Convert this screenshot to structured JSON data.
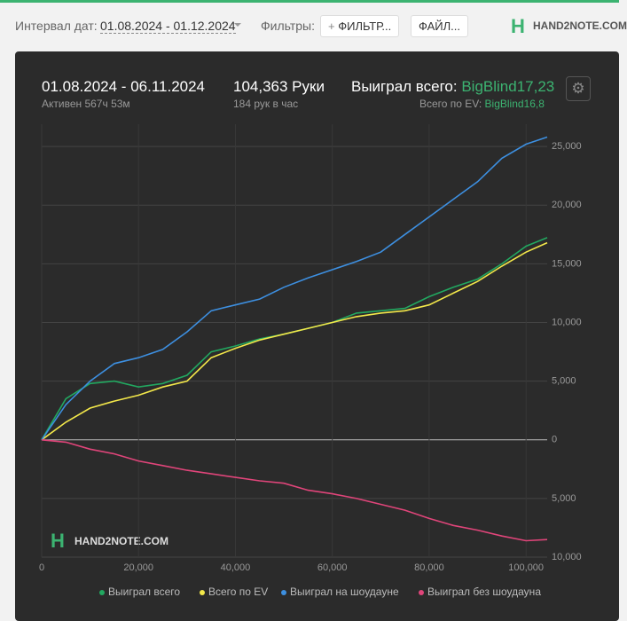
{
  "toolbar": {
    "date_label": "Интервал дат:",
    "date_range": "01.08.2024 - 01.12.2024",
    "filters_label": "Фильтры:",
    "filter_button": "ФИЛЬТР...",
    "file_button": "ФАЙЛ...",
    "logo": "HAND2NOTE.COM"
  },
  "summary": {
    "period": "01.08.2024 - 06.11.2024",
    "active": "Активен 567ч 53м",
    "hands": "104,363 Руки",
    "rate": "184 рук в час",
    "won_label": "Выиграл всего:",
    "won_value": "BigBlind17,23",
    "ev_label": "Всего по EV:",
    "ev_value": "BigBlind16,8"
  },
  "chart_data": {
    "type": "line",
    "watermark": "HAND2NOTE.COM",
    "x": [
      0,
      5000,
      10000,
      15000,
      20000,
      25000,
      30000,
      35000,
      40000,
      45000,
      50000,
      55000,
      60000,
      65000,
      70000,
      75000,
      80000,
      85000,
      90000,
      95000,
      100000,
      104363
    ],
    "series": [
      {
        "name": "Выиграл всего",
        "color": "#22a860",
        "values": [
          0,
          3500,
          4800,
          5000,
          4500,
          4800,
          5500,
          7500,
          8000,
          8600,
          9000,
          9500,
          10000,
          10800,
          11000,
          11200,
          12200,
          13000,
          13700,
          15000,
          16500,
          17230
        ]
      },
      {
        "name": "Всего по EV",
        "color": "#f3e84a",
        "values": [
          0,
          1500,
          2700,
          3300,
          3800,
          4500,
          5000,
          7000,
          7800,
          8500,
          9000,
          9500,
          10000,
          10500,
          10800,
          11000,
          11500,
          12500,
          13500,
          14800,
          16000,
          16800
        ]
      },
      {
        "name": "Выиграл на шоудауне",
        "color": "#3d8fe0",
        "values": [
          0,
          3000,
          5000,
          6500,
          7000,
          7700,
          9200,
          11000,
          11500,
          12000,
          13000,
          13800,
          14500,
          15200,
          16000,
          17500,
          19000,
          20500,
          22000,
          24000,
          25200,
          25800
        ]
      },
      {
        "name": "Выиграл без шоудауна",
        "color": "#e0457a",
        "values": [
          0,
          -200,
          -800,
          -1200,
          -1800,
          -2200,
          -2600,
          -2900,
          -3200,
          -3500,
          -3700,
          -4300,
          -4600,
          -5000,
          -5500,
          -6000,
          -6700,
          -7300,
          -7700,
          -8200,
          -8600,
          -8500
        ]
      }
    ],
    "xlim": [
      0,
      104363
    ],
    "xticks": [
      0,
      {
        "value": 20000,
        "label": "20,000"
      },
      {
        "value": 40000,
        "label": "40,000"
      },
      {
        "value": 60000,
        "label": "60,000"
      },
      {
        "value": 80000,
        "label": "80,000"
      },
      {
        "value": 100000,
        "label": "100,000"
      }
    ],
    "ylim": [
      -10000,
      26900
    ],
    "yticks": [
      {
        "value": 25000,
        "label": "25,000"
      },
      {
        "value": 20000,
        "label": "20,000"
      },
      {
        "value": 15000,
        "label": "15,000"
      },
      {
        "value": 10000,
        "label": "10,000"
      },
      {
        "value": 5000,
        "label": "5,000"
      },
      0,
      {
        "value": -5000,
        "label": "5,000"
      },
      {
        "value": -10000,
        "label": "10,000"
      }
    ],
    "grid": true
  }
}
